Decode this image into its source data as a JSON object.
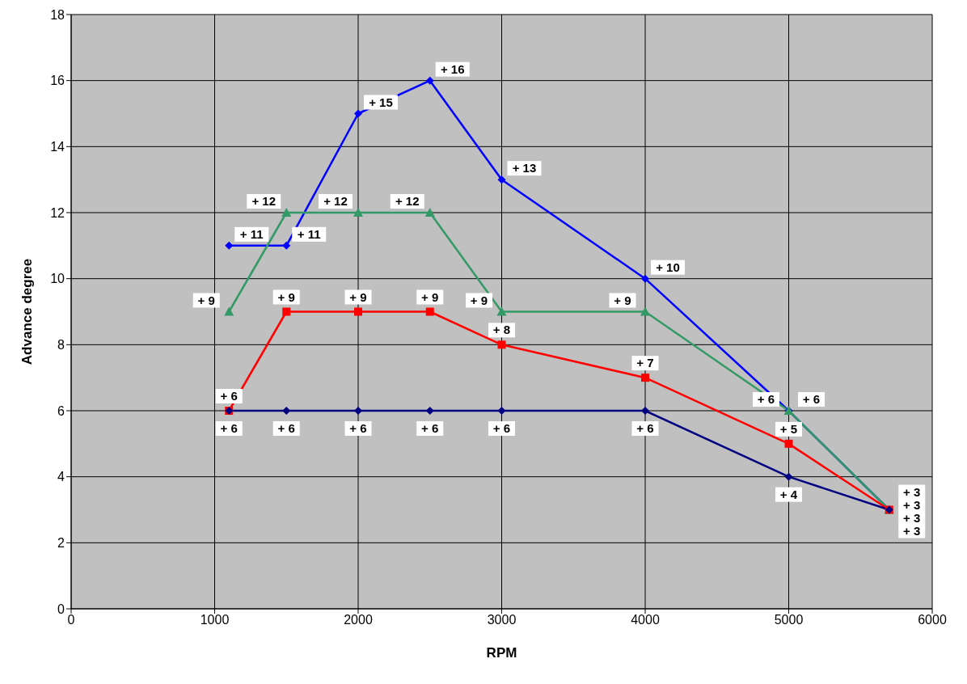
{
  "chart_data": {
    "type": "line",
    "xlabel": "RPM",
    "ylabel": "Advance degree",
    "xlim": [
      0,
      6000
    ],
    "xticks": [
      0,
      1000,
      2000,
      3000,
      4000,
      5000,
      6000
    ],
    "ylim": [
      0,
      18
    ],
    "yticks": [
      0,
      2,
      4,
      6,
      8,
      10,
      12,
      14,
      16,
      18
    ],
    "grid": true,
    "legend": false,
    "x": [
      1100,
      1500,
      2000,
      2500,
      3000,
      4000,
      5000,
      5700
    ],
    "series": [
      {
        "color": "#0000ff",
        "marker": "diamond",
        "values": [
          11,
          11,
          15,
          16,
          13,
          10,
          6,
          3
        ],
        "value_labels": [
          "+ 11",
          "+ 11",
          "+ 15",
          "+ 16",
          "+ 13",
          "+ 10",
          "+ 6",
          "+ 3"
        ]
      },
      {
        "color": "#339966",
        "marker": "triangle",
        "values": [
          9,
          12,
          12,
          12,
          9,
          9,
          6,
          3
        ],
        "value_labels": [
          "+ 9",
          "+ 12",
          "+ 12",
          "+ 12",
          "+ 9",
          "+ 9",
          "+ 6",
          "+ 3"
        ]
      },
      {
        "color": "#ff0000",
        "marker": "square",
        "values": [
          6,
          9,
          9,
          9,
          8,
          7,
          5,
          3
        ],
        "value_labels": [
          "+ 6",
          "+ 9",
          "+ 9",
          "+ 9",
          "+ 8",
          "+ 7",
          "+ 5",
          "+ 3"
        ]
      },
      {
        "color": "#000080",
        "marker": "diamond",
        "values": [
          6,
          6,
          6,
          6,
          6,
          6,
          4,
          3
        ],
        "value_labels": [
          "+ 6",
          "+ 6",
          "+ 6",
          "+ 6",
          "+ 6",
          "+ 6",
          "+ 4",
          "+ 3"
        ]
      }
    ]
  }
}
